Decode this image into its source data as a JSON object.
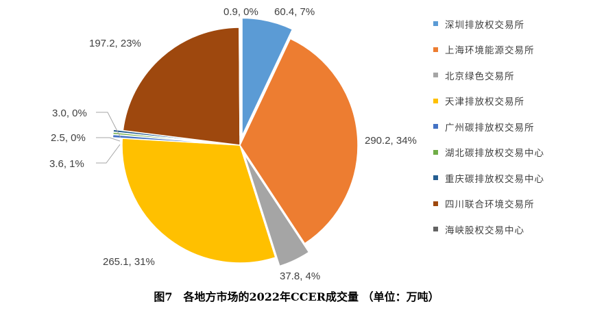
{
  "chart_data": {
    "type": "pie",
    "title": "",
    "caption": "图7　各地方市场的2022年CCER成交量 （单位：万吨）",
    "slices": [
      {
        "name": "深圳排放权交易所",
        "value": 60.4,
        "percent_label": "7%",
        "label": "60.4, 7%",
        "color": "#5b9bd5",
        "exploded": true
      },
      {
        "name": "上海环境能源交易所",
        "value": 290.2,
        "percent_label": "34%",
        "label": "290.2, 34%",
        "color": "#ed7d31",
        "exploded": false
      },
      {
        "name": "北京绿色交易所",
        "value": 37.8,
        "percent_label": "4%",
        "label": "37.8, 4%",
        "color": "#a5a5a5",
        "exploded": true
      },
      {
        "name": "天津排放权交易所",
        "value": 265.1,
        "percent_label": "31%",
        "label": "265.1, 31%",
        "color": "#ffc000",
        "exploded": false
      },
      {
        "name": "广州碳排放权交易所",
        "value": 3.6,
        "percent_label": "1%",
        "label": "3.6, 1%",
        "color": "#4472c4",
        "exploded": true
      },
      {
        "name": "湖北碳排放权交易中心",
        "value": 2.5,
        "percent_label": "0%",
        "label": "2.5, 0%",
        "color": "#70ad47",
        "exploded": true
      },
      {
        "name": "重庆碳排放权交易中心",
        "value": 3.0,
        "percent_label": "0%",
        "label": "3.0, 0%",
        "color": "#255e91",
        "exploded": true
      },
      {
        "name": "四川联合环境交易所",
        "value": 197.2,
        "percent_label": "23%",
        "label": "197.2, 23%",
        "color": "#9e480e",
        "exploded": false
      },
      {
        "name": "海峡股权交易中心",
        "value": 0.9,
        "percent_label": "0%",
        "label": "0.9, 0%",
        "color": "#636363",
        "exploded": true
      }
    ],
    "legend_position": "right",
    "unit": "万吨"
  }
}
